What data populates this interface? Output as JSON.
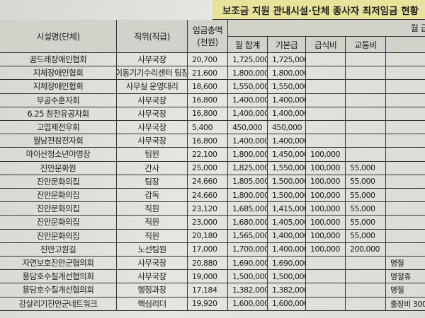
{
  "header": {
    "title": "보조금 지원 관내시설·단체 종사자 최저임금 현황",
    "group": "월 급",
    "columns": [
      "시설명(단체)",
      "직위(직급)",
      "임금총액",
      "(천원)",
      "월 합계",
      "기본급",
      "급식비",
      "교통비"
    ]
  },
  "table": {
    "rows": [
      [
        "꿈드레장애인협회",
        "사무국장",
        "20,700",
        "1,725,000",
        "1,725,000",
        null,
        null,
        null
      ],
      [
        "지체장애인협회",
        "이동기기수리센터 팀장",
        "21,600",
        "1,800,000",
        "1,800,000",
        null,
        null,
        null
      ],
      [
        "지체장애인협회",
        "사무실 운영대리",
        "18,600",
        "1,550,000",
        "1,550,000",
        null,
        null,
        null
      ],
      [
        "무공수훈자회",
        "사무국장",
        "16,800",
        "1,400,000",
        "1,400,000",
        null,
        null,
        null
      ],
      [
        "6.25 참전유공자회",
        "사무국장",
        "16,800",
        "1,400,000",
        "1,400,000",
        null,
        null,
        null
      ],
      [
        "고엽제전우회",
        "사무국장",
        "5,400",
        "450,000",
        "450,000",
        null,
        null,
        null
      ],
      [
        "월남전참전자회",
        "사무국장",
        "16,800",
        "1,400,000",
        "1,400,000",
        null,
        null,
        null
      ],
      [
        "마이산청소년야영장",
        "팀원",
        "22,100",
        "1,800,000",
        "1,450,000",
        "100,000",
        null,
        null
      ],
      [
        "진안문화원",
        "간사",
        "25,000",
        "1,825,000",
        "1,550,000",
        "100,000",
        "55,000",
        null
      ],
      [
        "진안문화의집",
        "팀장",
        "24,660",
        "1,805,000",
        "1,500,000",
        "100,000",
        "55,000",
        null
      ],
      [
        "진안문화의집",
        "감독",
        "24,660",
        "1,800,000",
        "1,500,000",
        "100,000",
        "55,000",
        null
      ],
      [
        "진안문화의집",
        "직원",
        "23,120",
        "1,685,000",
        "1,415,000",
        "100,000",
        "55,000",
        null
      ],
      [
        "진안문화의집",
        "직원",
        "23,000",
        "1,680,000",
        "1,405,000",
        "100,000",
        "55,000",
        null
      ],
      [
        "진안문화의집",
        "직원",
        "20,180",
        "1,565,000",
        "1,400,000",
        "100,000",
        "55,000",
        null
      ],
      [
        "진안고원길",
        "노선팀원",
        "17,000",
        "1,700,000",
        "1,400,000",
        "100,000",
        "200,000",
        null
      ],
      [
        "자연보호진안군협의회",
        "사무국장",
        "20,880",
        "1,690,000",
        "1,690,000",
        null,
        null,
        "명절"
      ],
      [
        "용담호수질개선협의회",
        "사무국장",
        "19,000",
        "1,500,000",
        "1,500,000",
        null,
        null,
        "명절휴"
      ],
      [
        "용담호수질개선협의회",
        "행정과장",
        "17,184",
        "1,382,000",
        "1,382,000",
        null,
        null,
        "명절"
      ],
      [
        "강살리기진안군네트워크",
        "핵심리더",
        "19,920",
        "1,600,000",
        "1,600,000",
        null,
        null,
        "출장비 300"
      ]
    ]
  }
}
